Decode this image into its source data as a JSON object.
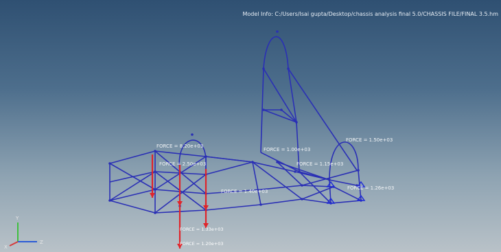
{
  "window": {
    "model_info": "Model Info: C:/Users/Isai gupta/Desktop/chassis analysis final 5.0/CHASSIS FILE/FINAL 3.5.hm"
  },
  "colors": {
    "background_top": "#2f5072",
    "background_bottom": "#b9c2c8",
    "frame": "#2a2fb5",
    "force_arrow": "#e0242a",
    "constraint": "#1f2bd6"
  },
  "force_labels": [
    "FORCE = 8.20e+03",
    "FORCE = 2.50e+03",
    "FORCE = 1.00e+03",
    "FORCE = 1.15e+03",
    "FORCE = 1.50e+03",
    "FORCE = 1.26e+03",
    "FORCE = 1.40e+03",
    "FORCE = 1.33e+03",
    "FORCE = 1.20e+03"
  ],
  "axis_triad": {
    "y_label": "Y",
    "z_label": "Z",
    "x_label": "X"
  }
}
